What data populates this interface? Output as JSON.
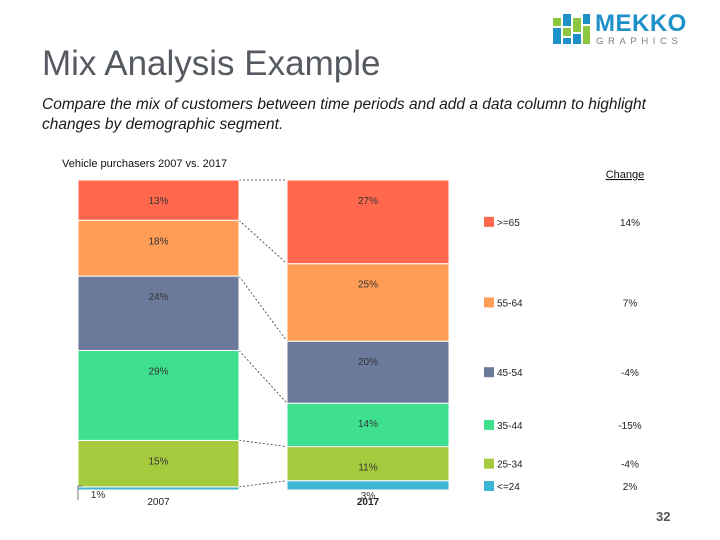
{
  "page": {
    "title": "Mix Analysis Example",
    "subtitle": "Compare the mix of customers between time periods and add a data column to highlight changes by demographic segment.",
    "page_number": "32"
  },
  "logo": {
    "word": "MEKKO",
    "sub": "GRAPHICS"
  },
  "chart_data": {
    "type": "bar",
    "stacked": true,
    "title": "Vehicle purchasers 2007 vs. 2017",
    "categories": [
      "2007",
      "2017"
    ],
    "ylim": [
      0,
      100
    ],
    "series": [
      {
        "name": "<=24",
        "color": "#3fb6d3",
        "values": [
          1,
          3
        ],
        "labels": [
          "1%",
          "3%"
        ],
        "change": "2%"
      },
      {
        "name": "25-34",
        "color": "#a6ca3e",
        "values": [
          15,
          11
        ],
        "labels": [
          "15%",
          "11%"
        ],
        "change": "-4%"
      },
      {
        "name": "35-44",
        "color": "#3ee08f",
        "values": [
          29,
          14
        ],
        "labels": [
          "29%",
          "14%"
        ],
        "change": "-15%"
      },
      {
        "name": "45-54",
        "color": "#6b7a9b",
        "values": [
          24,
          20
        ],
        "labels": [
          "24%",
          "20%"
        ],
        "change": "-4%"
      },
      {
        "name": "55-64",
        "color": "#ff9c55",
        "values": [
          18,
          25
        ],
        "labels": [
          "18%",
          "25%"
        ],
        "change": "7%"
      },
      {
        "name": ">=65",
        "color": "#ff684d",
        "values": [
          13,
          27
        ],
        "labels": [
          "13%",
          "27%"
        ],
        "change": "14%"
      }
    ],
    "change_header": "Change",
    "legend_placement": "right",
    "grid": false
  }
}
